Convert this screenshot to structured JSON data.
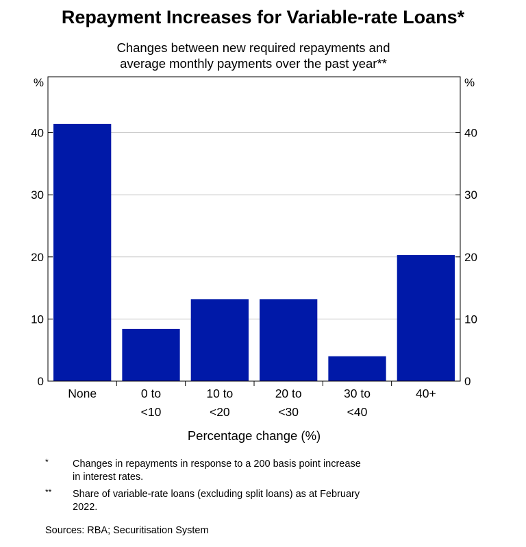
{
  "header": {
    "title": "Repayment Increases for Variable-rate Loans*",
    "subtitle_line1": "Changes between new required repayments and",
    "subtitle_line2": "average monthly payments over the past year**"
  },
  "chart_data": {
    "type": "bar",
    "title": "Repayment Increases for Variable-rate Loans*",
    "subtitle": "Changes between new required repayments and average monthly payments over the past year**",
    "categories": [
      "None",
      "0 to <10",
      "10 to <20",
      "20 to <30",
      "30 to <40",
      "40+"
    ],
    "category_lines": [
      [
        "None"
      ],
      [
        "0 to",
        "<10"
      ],
      [
        "10 to",
        "<20"
      ],
      [
        "20 to",
        "<30"
      ],
      [
        "30 to",
        "<40"
      ],
      [
        "40+"
      ]
    ],
    "values": [
      41.4,
      8.4,
      13.2,
      13.2,
      4.0,
      20.3
    ],
    "xlabel": "Percentage change (%)",
    "ylabel_left": "%",
    "ylabel_right": "%",
    "ylim": [
      0,
      49
    ],
    "yticks": [
      0,
      10,
      20,
      30,
      40
    ],
    "grid": true,
    "bar_color": "#0019a8"
  },
  "notes": [
    {
      "marker": "*",
      "text_line1": "Changes in repayments in response to a 200 basis point increase",
      "text_line2": "in interest rates."
    },
    {
      "marker": "**",
      "text_line1": "Share of variable-rate loans (excluding split loans) as at February",
      "text_line2": "2022."
    }
  ],
  "sources": "Sources: RBA; Securitisation System"
}
